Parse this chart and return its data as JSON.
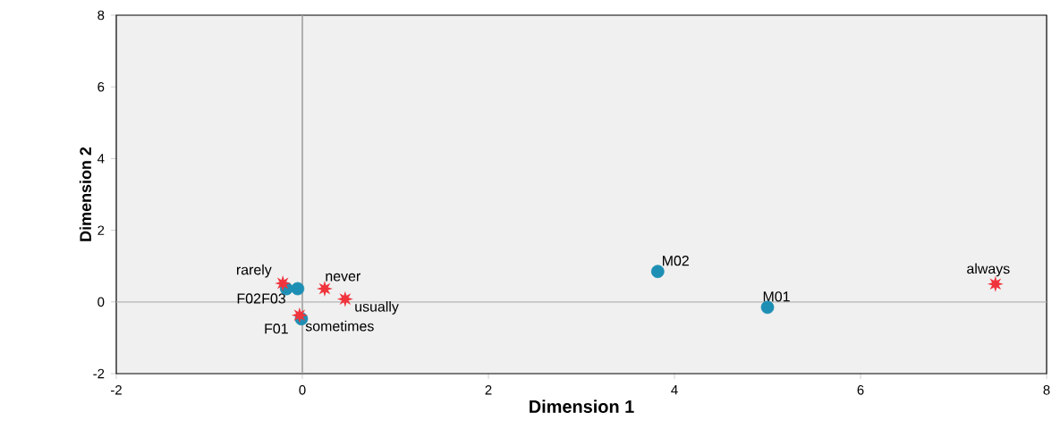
{
  "chart_data": {
    "type": "scatter",
    "xlabel": "Dimension 1",
    "ylabel": "Dimension 2",
    "series": [
      {
        "color": "#1e8fb4",
        "marker": "circle",
        "x": [
          3.82,
          5.0,
          -0.17,
          -0.05,
          -0.01
        ],
        "values": [
          0.85,
          -0.15,
          0.37,
          0.37,
          -0.47
        ]
      },
      {
        "color": "#f0343c",
        "marker": "star",
        "x": [
          7.45,
          -0.21,
          0.24,
          0.46,
          -0.03
        ],
        "values": [
          0.5,
          0.52,
          0.37,
          0.08,
          -0.37
        ]
      }
    ],
    "annotations": [
      {
        "text": "M02",
        "x": 3.82,
        "y": 0.85
      },
      {
        "text": "M01",
        "x": 5.0,
        "y": -0.15
      },
      {
        "text": "F02",
        "x": -0.17,
        "y": 0.37
      },
      {
        "text": "F03",
        "x": -0.05,
        "y": 0.37
      },
      {
        "text": "F01",
        "x": -0.01,
        "y": -0.47
      },
      {
        "text": "always",
        "x": 7.45,
        "y": 0.5
      },
      {
        "text": "rarely",
        "x": -0.21,
        "y": 0.52
      },
      {
        "text": "never",
        "x": 0.24,
        "y": 0.37
      },
      {
        "text": "usually",
        "x": 0.46,
        "y": 0.08
      },
      {
        "text": "sometimes",
        "x": -0.03,
        "y": -0.37
      }
    ],
    "ref_lines": [
      {
        "axis": "x",
        "value": 0,
        "color": "#a0a0a0"
      },
      {
        "axis": "y",
        "value": 0,
        "color": "#b4b4b4"
      }
    ],
    "xlim": [
      -2,
      8
    ],
    "ylim": [
      -2,
      8
    ],
    "xticks": [
      -2,
      0,
      2,
      4,
      6,
      8
    ],
    "yticks": [
      -2,
      0,
      2,
      4,
      6,
      8
    ],
    "grid": false
  }
}
